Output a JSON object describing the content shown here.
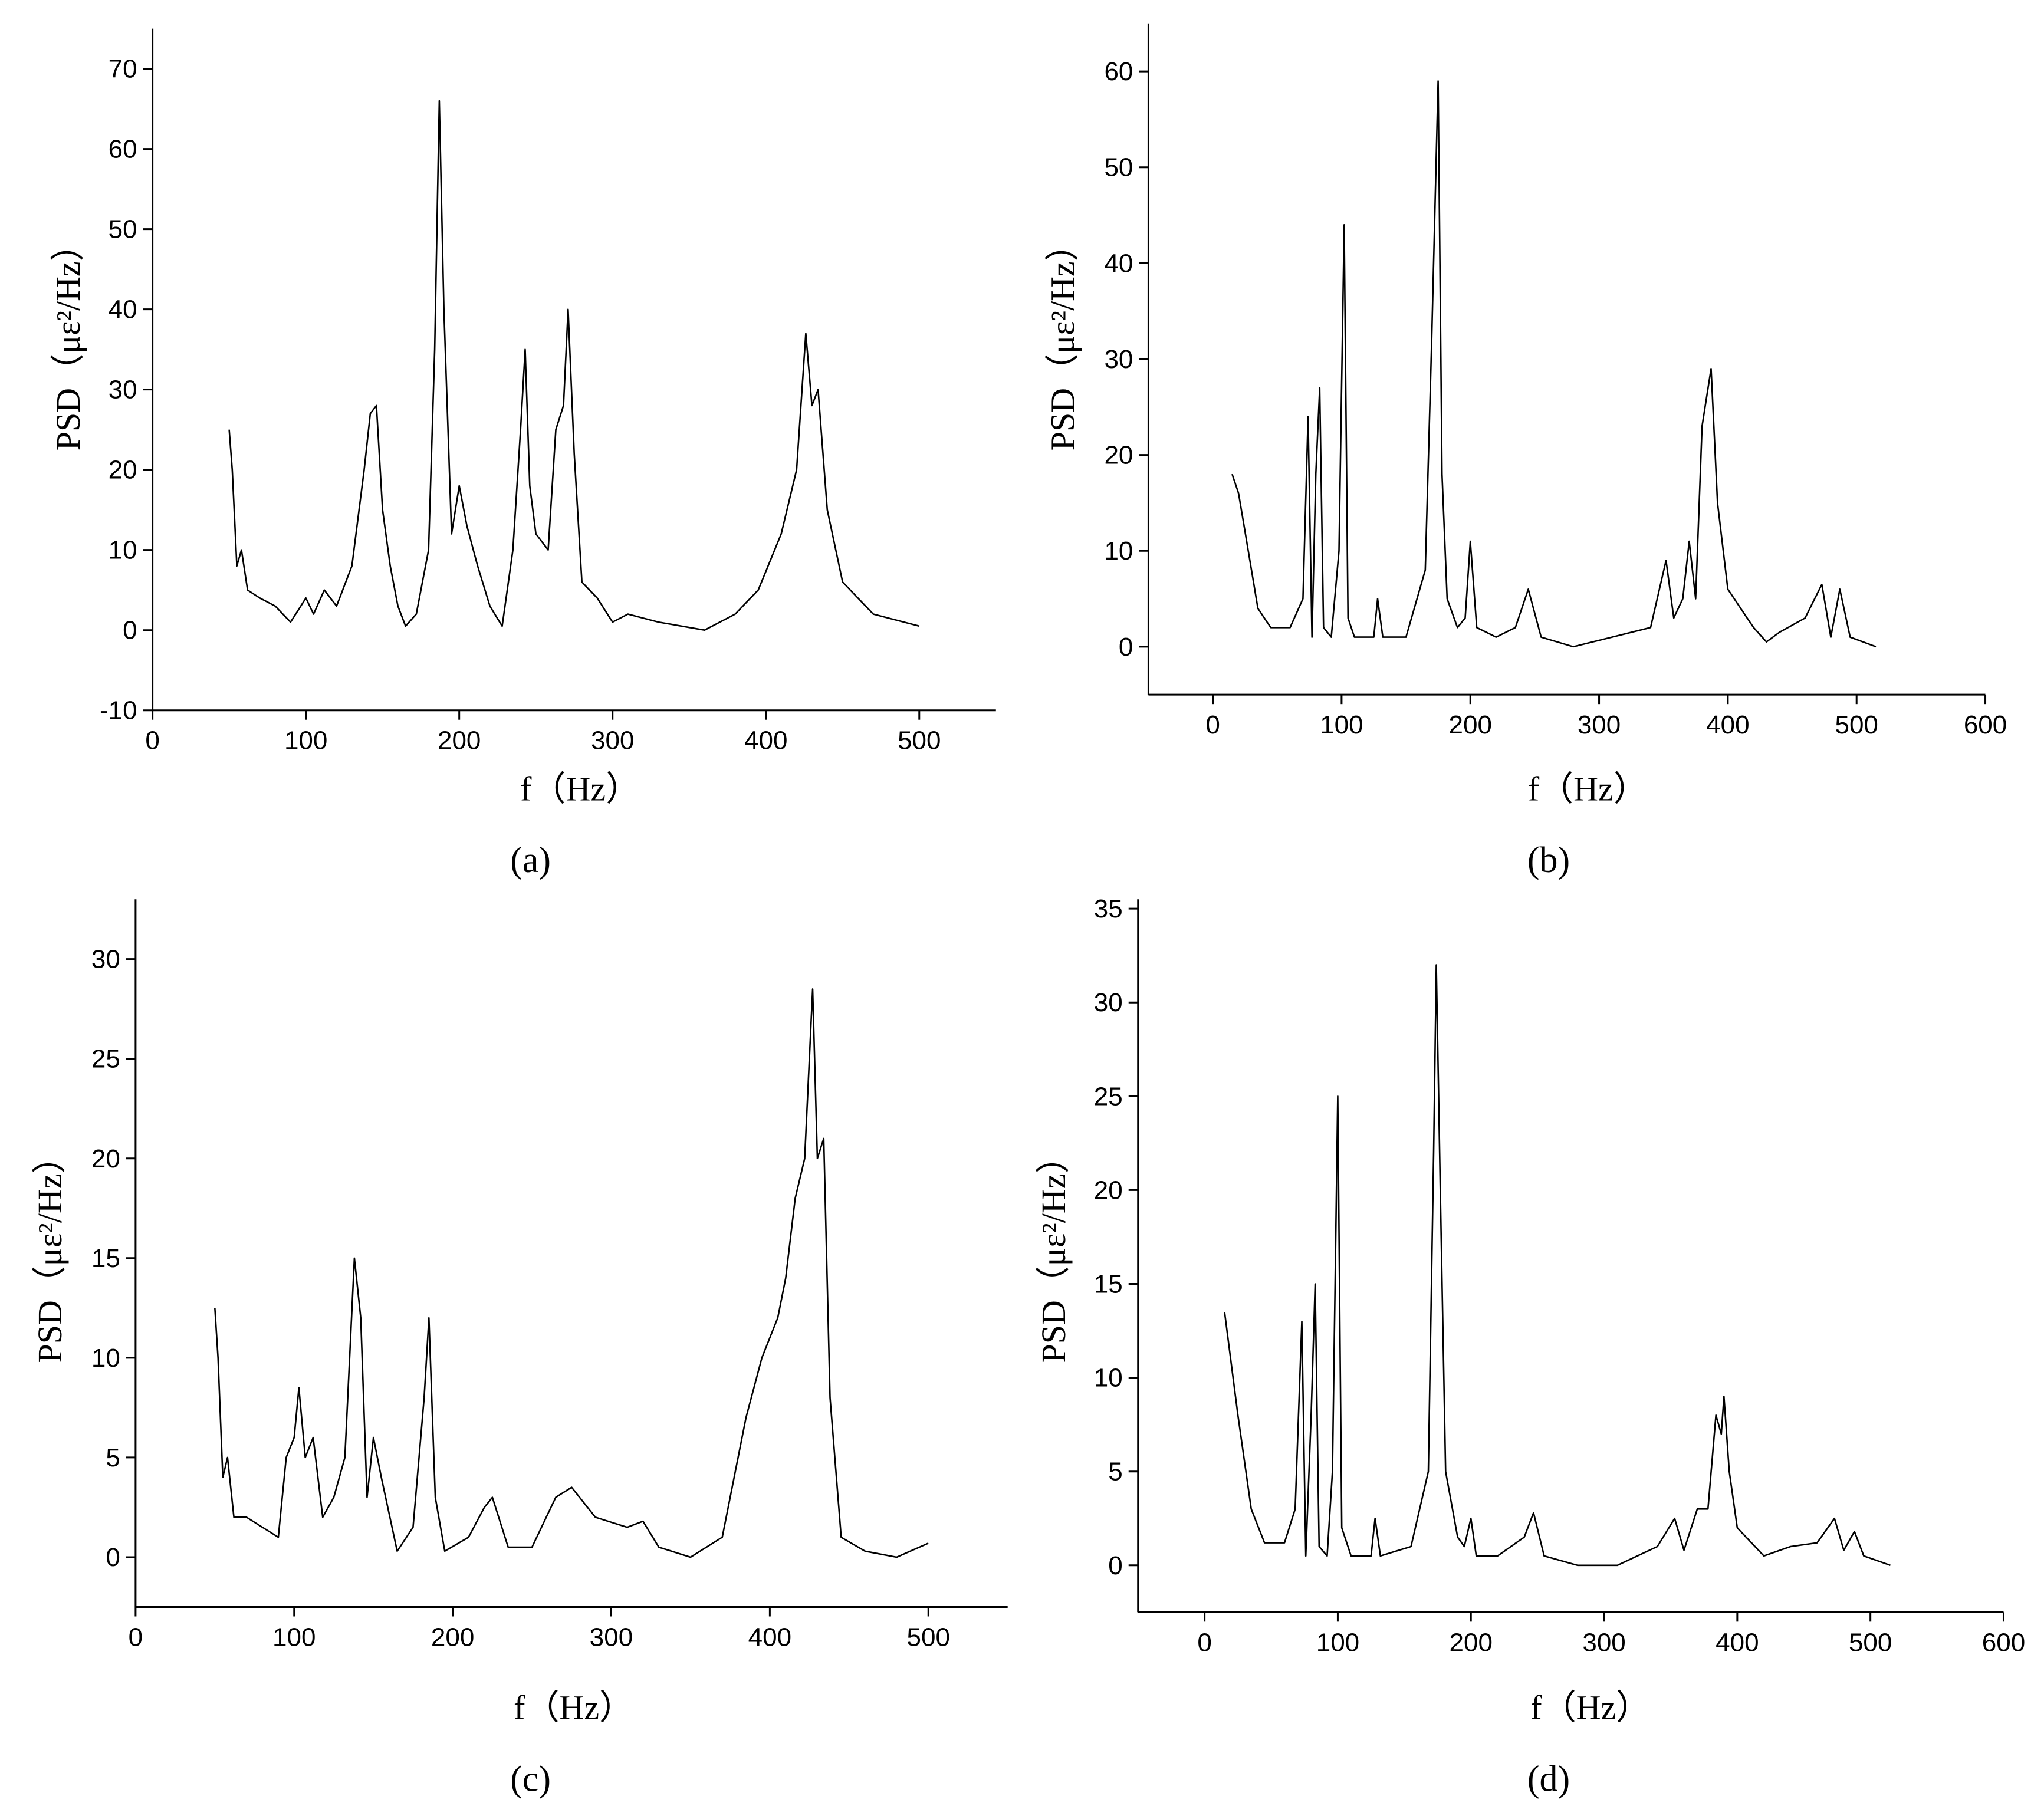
{
  "chart_data": [
    {
      "type": "line",
      "caption": "(a)",
      "x_label": "f（Hz）",
      "y_label": "PSD（με²/Hz）",
      "color": "#000000",
      "xlim": [
        0,
        550
      ],
      "ylim": [
        -10,
        75
      ],
      "xticks": [
        0,
        100,
        200,
        300,
        400,
        500
      ],
      "yticks": [
        -10,
        0,
        10,
        20,
        30,
        40,
        50,
        60,
        70
      ],
      "x": [
        50,
        52,
        55,
        58,
        62,
        70,
        80,
        90,
        100,
        105,
        112,
        120,
        130,
        138,
        142,
        146,
        150,
        155,
        160,
        165,
        172,
        180,
        184,
        187,
        190,
        195,
        200,
        205,
        212,
        220,
        228,
        235,
        240,
        243,
        246,
        250,
        258,
        263,
        268,
        271,
        275,
        280,
        290,
        300,
        310,
        330,
        360,
        380,
        395,
        410,
        420,
        426,
        430,
        434,
        440,
        450,
        470,
        500
      ],
      "values": [
        25,
        20,
        8,
        10,
        5,
        4,
        3,
        1,
        4,
        2,
        5,
        3,
        8,
        20,
        27,
        28,
        15,
        8,
        3,
        0.5,
        2,
        10,
        35,
        66,
        40,
        12,
        18,
        13,
        8,
        3,
        0.5,
        10,
        25,
        35,
        18,
        12,
        10,
        25,
        28,
        40,
        22,
        6,
        4,
        1,
        2,
        1,
        0,
        2,
        5,
        12,
        20,
        37,
        28,
        30,
        15,
        6,
        2,
        0.5
      ]
    },
    {
      "type": "line",
      "caption": "(b)",
      "x_label": "f（Hz）",
      "y_label": "PSD（με²/Hz）",
      "color": "#000000",
      "xlim": [
        -50,
        600
      ],
      "ylim": [
        -5,
        65
      ],
      "xticks": [
        0,
        100,
        200,
        300,
        400,
        500,
        600
      ],
      "yticks": [
        0,
        10,
        20,
        30,
        40,
        50,
        60
      ],
      "x": [
        15,
        20,
        25,
        35,
        45,
        60,
        70,
        74,
        77,
        80,
        83,
        86,
        92,
        98,
        102,
        105,
        110,
        125,
        128,
        132,
        150,
        165,
        170,
        175,
        178,
        182,
        190,
        196,
        200,
        205,
        220,
        235,
        245,
        255,
        280,
        310,
        340,
        352,
        358,
        365,
        370,
        375,
        380,
        387,
        392,
        400,
        420,
        430,
        440,
        460,
        473,
        480,
        487,
        495,
        515
      ],
      "values": [
        18,
        16,
        12,
        4,
        2,
        2,
        5,
        24,
        1,
        18,
        27,
        2,
        1,
        10,
        44,
        3,
        1,
        1,
        5,
        1,
        1,
        8,
        32,
        59,
        18,
        5,
        2,
        3,
        11,
        2,
        1,
        2,
        6,
        1,
        0,
        1,
        2,
        9,
        3,
        5,
        11,
        5,
        23,
        29,
        15,
        6,
        2,
        0.5,
        1.5,
        3,
        6.5,
        1,
        6,
        1,
        0
      ]
    },
    {
      "type": "line",
      "caption": "(c)",
      "x_label": "f（Hz）",
      "y_label": "PSD（με²/Hz）",
      "color": "#000000",
      "xlim": [
        0,
        550
      ],
      "ylim": [
        -2.5,
        33
      ],
      "xticks": [
        0,
        100,
        200,
        300,
        400,
        500
      ],
      "yticks": [
        0,
        5,
        10,
        15,
        20,
        25,
        30
      ],
      "x": [
        50,
        52,
        55,
        58,
        62,
        70,
        80,
        90,
        95,
        100,
        103,
        107,
        112,
        118,
        125,
        132,
        138,
        142,
        146,
        150,
        155,
        165,
        175,
        182,
        185,
        189,
        195,
        210,
        220,
        225,
        235,
        250,
        265,
        275,
        290,
        310,
        320,
        330,
        350,
        370,
        385,
        395,
        405,
        410,
        416,
        422,
        427,
        430,
        434,
        438,
        445,
        460,
        480,
        500
      ],
      "values": [
        12.5,
        10,
        4,
        5,
        2,
        2,
        1.5,
        1,
        5,
        6,
        8.5,
        5,
        6,
        2,
        3,
        5,
        15,
        12,
        3,
        6,
        4,
        0.3,
        1.5,
        8,
        12,
        3,
        0.3,
        1,
        2.5,
        3,
        0.5,
        0.5,
        3,
        3.5,
        2,
        1.5,
        1.8,
        0.5,
        0,
        1,
        7,
        10,
        12,
        14,
        18,
        20,
        28.5,
        20,
        21,
        8,
        1,
        0.3,
        0,
        0.7
      ]
    },
    {
      "type": "line",
      "caption": "(d)",
      "x_label": "f（Hz）",
      "y_label": "PSD（με²/Hz）",
      "color": "#000000",
      "xlim": [
        -50,
        600
      ],
      "ylim": [
        -2.5,
        35.5
      ],
      "xticks": [
        0,
        100,
        200,
        300,
        400,
        500,
        600
      ],
      "yticks": [
        0,
        5,
        10,
        15,
        20,
        25,
        30,
        35
      ],
      "x": [
        15,
        25,
        35,
        45,
        60,
        68,
        73,
        76,
        80,
        83,
        86,
        92,
        96,
        100,
        103,
        110,
        125,
        128,
        132,
        155,
        168,
        172,
        174,
        177,
        181,
        190,
        195,
        200,
        204,
        220,
        240,
        247,
        255,
        280,
        310,
        340,
        353,
        360,
        370,
        378,
        384,
        388,
        390,
        394,
        400,
        420,
        440,
        460,
        473,
        480,
        488,
        495,
        515
      ],
      "values": [
        13.5,
        8,
        3,
        1.2,
        1.2,
        3,
        13,
        0.5,
        8,
        15,
        1,
        0.5,
        5,
        25,
        2,
        0.5,
        0.5,
        2.5,
        0.5,
        1,
        5,
        22,
        32,
        20,
        5,
        1.5,
        1,
        2.5,
        0.5,
        0.5,
        1.5,
        2.8,
        0.5,
        0,
        0,
        1,
        2.5,
        0.8,
        3,
        3,
        8,
        7,
        9,
        5,
        2,
        0.5,
        1,
        1.2,
        2.5,
        0.8,
        1.8,
        0.5,
        0
      ]
    }
  ]
}
